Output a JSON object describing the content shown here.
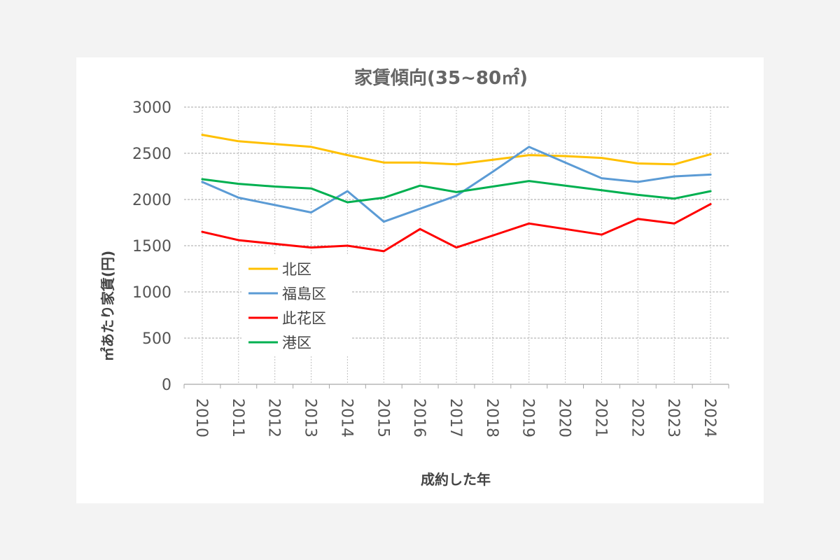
{
  "chart_data": {
    "type": "line",
    "title": "家賃傾向(35~80㎡)",
    "xlabel": "成約した年",
    "ylabel": "㎡あたり家賃(円)",
    "ylim": [
      0,
      3000
    ],
    "yticks": [
      "0",
      "500",
      "1000",
      "1500",
      "2000",
      "2500",
      "3000"
    ],
    "grid": true,
    "legend_position": "left-middle",
    "categories": [
      "2010",
      "2011",
      "2012",
      "2013",
      "2014",
      "2015",
      "2016",
      "2017",
      "2018",
      "2019",
      "2020",
      "2021",
      "2022",
      "2023",
      "2024"
    ],
    "series": [
      {
        "name": "北区",
        "color": "#ffc000",
        "values": [
          2700,
          2630,
          2600,
          2570,
          2480,
          2400,
          2400,
          2380,
          2430,
          2480,
          2470,
          2450,
          2390,
          2380,
          2490
        ]
      },
      {
        "name": "福島区",
        "color": "#5b9bd5",
        "values": [
          2190,
          2020,
          1940,
          1860,
          2090,
          1760,
          1900,
          2040,
          2300,
          2570,
          2400,
          2230,
          2190,
          2250,
          2270
        ]
      },
      {
        "name": "此花区",
        "color": "#ff0000",
        "values": [
          1650,
          1560,
          1520,
          1480,
          1500,
          1440,
          1680,
          1480,
          1610,
          1740,
          1680,
          1620,
          1790,
          1740,
          1950
        ]
      },
      {
        "name": "港区",
        "color": "#00b050",
        "values": [
          2220,
          2170,
          2140,
          2120,
          1970,
          2020,
          2150,
          2080,
          2140,
          2200,
          2150,
          2100,
          2050,
          2010,
          2090
        ]
      }
    ]
  }
}
